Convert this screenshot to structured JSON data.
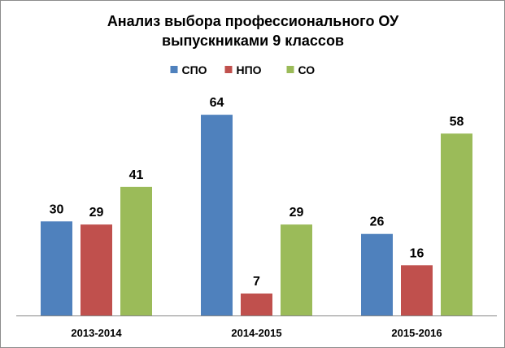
{
  "chart_data": {
    "type": "bar",
    "title": [
      "Анализ выбора профессионального ОУ",
      "выпускниками 9 классов"
    ],
    "categories": [
      "2013-2014",
      "2014-2015",
      "2015-2016"
    ],
    "series": [
      {
        "name": "СПО",
        "values": [
          30,
          64,
          26
        ],
        "color": "#4f81bd"
      },
      {
        "name": "НПО",
        "values": [
          29,
          7,
          16
        ],
        "color": "#c0504d"
      },
      {
        "name": "СО",
        "values": [
          41,
          29,
          58
        ],
        "color": "#9bbb59"
      }
    ],
    "legend": "top",
    "ylim": [
      0,
      70
    ],
    "grid": false
  }
}
